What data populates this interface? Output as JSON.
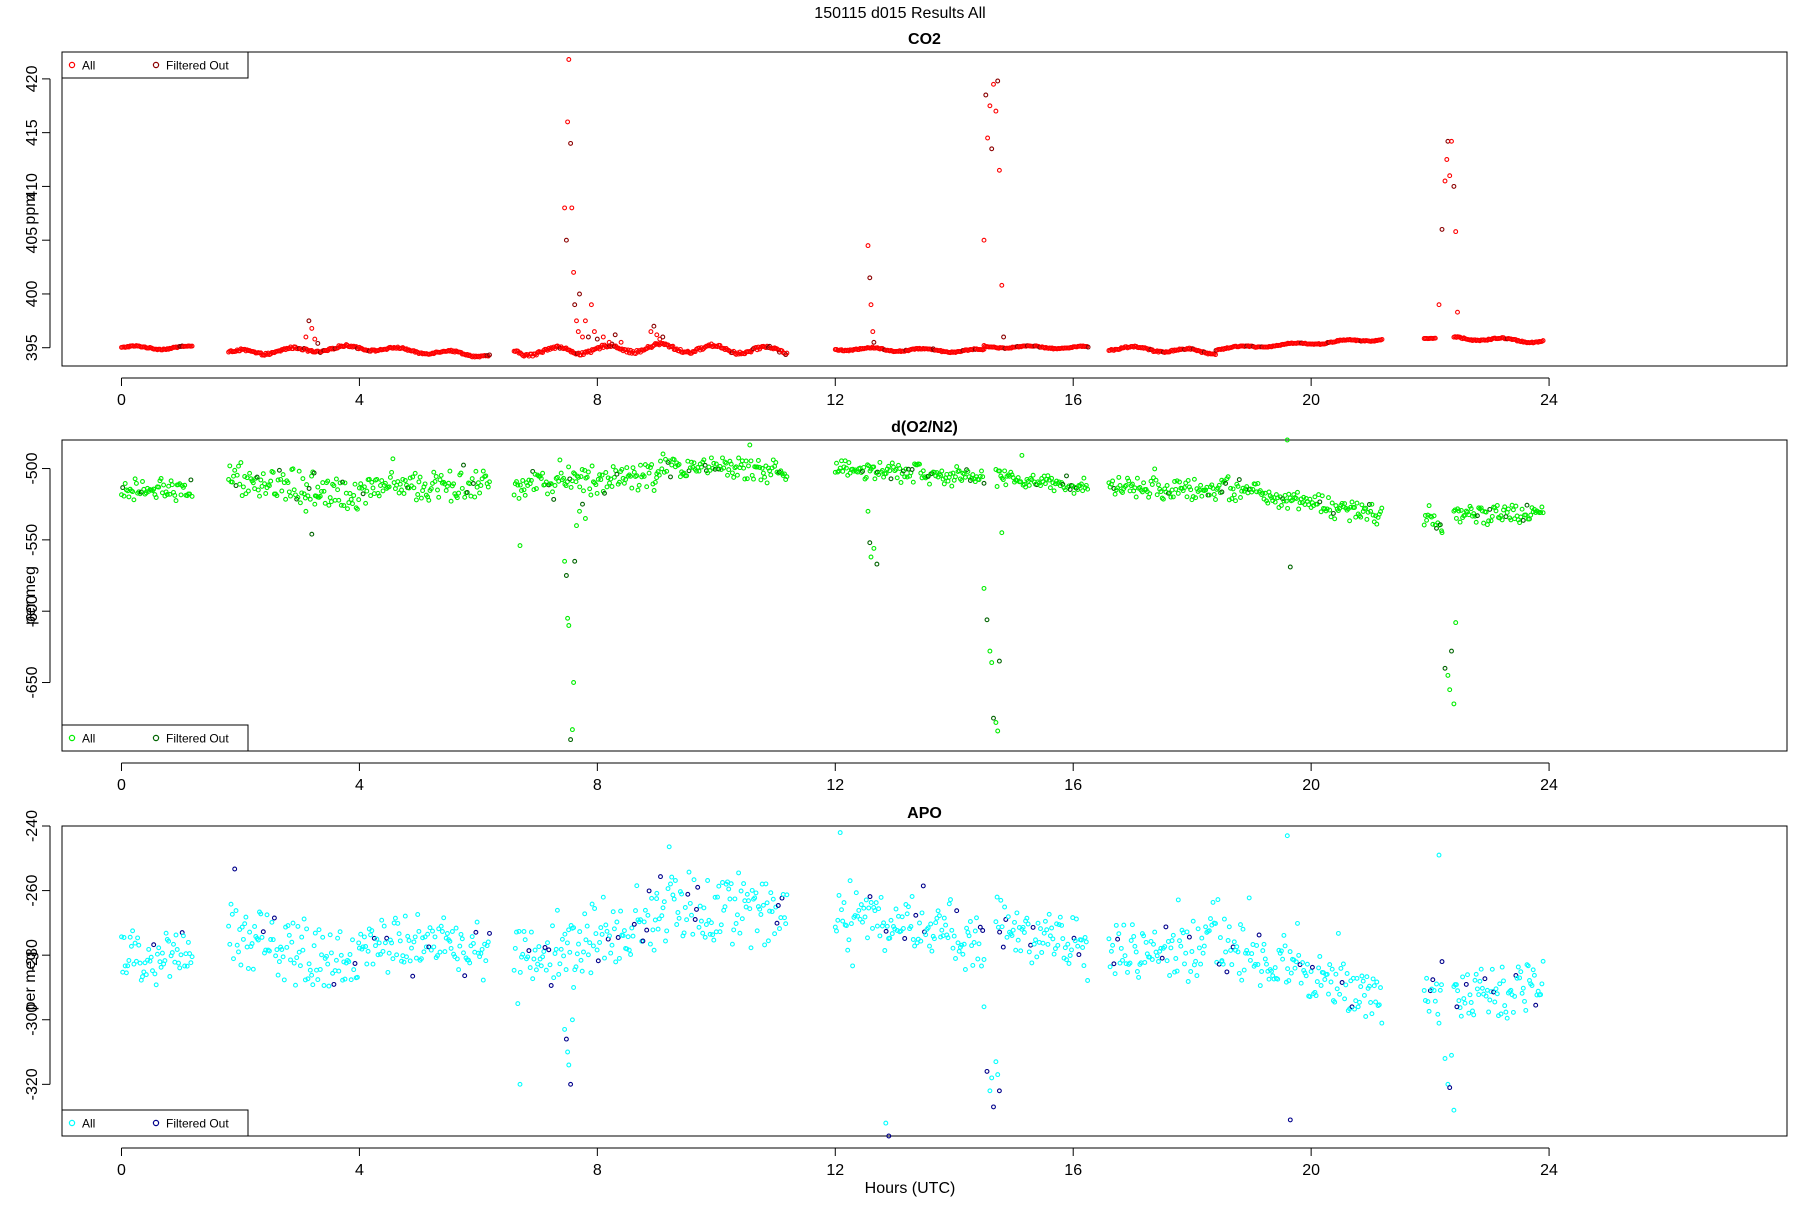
{
  "figure": {
    "title": "150115   d015   Results All",
    "xlabel": "Hours (UTC)"
  },
  "chart_data": [
    {
      "type": "scatter",
      "title": "CO2",
      "ylabel": "ppm",
      "xlabel": "",
      "xlim": [
        -1,
        28
      ],
      "ylim": [
        393.3,
        422.5
      ],
      "xticks": [
        0,
        4,
        8,
        12,
        16,
        20,
        24
      ],
      "yticks": [
        395,
        400,
        405,
        410,
        415,
        420
      ],
      "legend": {
        "position": "top-left",
        "entries": [
          "All",
          "Filtered Out"
        ]
      },
      "colors": {
        "all": "#ff0000",
        "filtered": "#8b0000"
      },
      "gaps": [
        [
          1.2,
          1.8
        ],
        [
          6.2,
          6.6
        ],
        [
          11.2,
          12.0
        ],
        [
          16.25,
          16.6
        ],
        [
          21.2,
          21.9
        ]
      ],
      "segments": [
        {
          "x0": 0.0,
          "x1": 1.2,
          "y0": 395.0,
          "y1": 395.0,
          "wave": 0.15
        },
        {
          "x0": 1.8,
          "x1": 4.0,
          "y0": 394.5,
          "y1": 395.0,
          "wave": 0.25
        },
        {
          "x0": 4.0,
          "x1": 6.2,
          "y0": 395.0,
          "y1": 394.3,
          "wave": 0.2
        },
        {
          "x0": 6.6,
          "x1": 9.0,
          "y0": 394.6,
          "y1": 395.0,
          "wave": 0.35
        },
        {
          "x0": 9.0,
          "x1": 11.2,
          "y0": 395.0,
          "y1": 394.7,
          "wave": 0.35
        },
        {
          "x0": 12.0,
          "x1": 14.5,
          "y0": 394.9,
          "y1": 394.7,
          "wave": 0.15
        },
        {
          "x0": 14.5,
          "x1": 16.25,
          "y0": 395.1,
          "y1": 395.0,
          "wave": 0.12
        },
        {
          "x0": 16.6,
          "x1": 18.4,
          "y0": 395.0,
          "y1": 394.6,
          "wave": 0.2
        },
        {
          "x0": 18.4,
          "x1": 21.2,
          "y0": 394.9,
          "y1": 395.8,
          "wave": 0.12
        },
        {
          "x0": 21.9,
          "x1": 22.1,
          "y0": 395.9,
          "y1": 395.9,
          "wave": 0.05
        },
        {
          "x0": 22.4,
          "x1": 23.9,
          "y0": 395.9,
          "y1": 395.6,
          "wave": 0.15
        }
      ],
      "spikes": [
        {
          "x": [
            3.1,
            3.15,
            3.2,
            3.25,
            3.3
          ],
          "y": [
            396.0,
            397.5,
            396.8,
            395.8,
            395.4
          ]
        },
        {
          "x": [
            7.45,
            7.48,
            7.5,
            7.52,
            7.55,
            7.57,
            7.6,
            7.62,
            7.65,
            7.68,
            7.7,
            7.75,
            7.8,
            7.85,
            7.9,
            7.95,
            8.0,
            8.1,
            8.2,
            8.3,
            8.4
          ],
          "y": [
            408.0,
            405.0,
            416.0,
            421.8,
            414.0,
            408.0,
            402.0,
            399.0,
            397.5,
            396.5,
            400.0,
            396.0,
            397.5,
            396.0,
            399.0,
            396.5,
            395.8,
            396.0,
            395.5,
            396.2,
            395.5
          ]
        },
        {
          "x": [
            8.9,
            8.95,
            9.0,
            9.05,
            9.1
          ],
          "y": [
            396.5,
            397.0,
            396.2,
            395.8,
            396.0
          ]
        },
        {
          "x": [
            12.55,
            12.58,
            12.6,
            12.63,
            12.65
          ],
          "y": [
            404.5,
            401.5,
            399.0,
            396.5,
            395.5
          ]
        },
        {
          "x": [
            14.5,
            14.53,
            14.56,
            14.6,
            14.63,
            14.66,
            14.7,
            14.73,
            14.76,
            14.8,
            14.83
          ],
          "y": [
            405.0,
            418.5,
            414.5,
            417.5,
            413.5,
            419.5,
            417.0,
            419.8,
            411.5,
            400.8,
            396.0
          ]
        },
        {
          "x": [
            22.15,
            22.2,
            22.25,
            22.28,
            22.3,
            22.33,
            22.36,
            22.4,
            22.43,
            22.46
          ],
          "y": [
            399.0,
            406.0,
            410.5,
            412.5,
            414.2,
            411.0,
            414.2,
            410.0,
            405.8,
            398.3
          ]
        }
      ]
    },
    {
      "type": "scatter",
      "title": "d(O2/N2)",
      "ylabel": "per meg",
      "xlabel": "",
      "xlim": [
        -1,
        28
      ],
      "ylim": [
        -698,
        -480
      ],
      "xticks": [
        0,
        4,
        8,
        12,
        16,
        20,
        24
      ],
      "yticks": [
        -500,
        -550,
        -600,
        -650
      ],
      "legend": {
        "position": "bottom-left",
        "entries": [
          "All",
          "Filtered Out"
        ]
      },
      "colors": {
        "all": "#00ee00",
        "filtered": "#006400"
      },
      "gaps": [
        [
          1.2,
          1.8
        ],
        [
          6.2,
          6.6
        ],
        [
          11.2,
          12.0
        ],
        [
          16.25,
          16.6
        ],
        [
          21.2,
          21.9
        ]
      ],
      "segments": [
        {
          "x0": 0.0,
          "x1": 1.2,
          "y0": -516,
          "y1": -515,
          "noise": 6
        },
        {
          "x0": 1.8,
          "x1": 4.0,
          "y0": -508,
          "y1": -520,
          "noise": 9
        },
        {
          "x0": 4.0,
          "x1": 6.2,
          "y0": -513,
          "y1": -512,
          "noise": 7
        },
        {
          "x0": 6.6,
          "x1": 9.0,
          "y0": -512,
          "y1": -505,
          "noise": 8
        },
        {
          "x0": 9.0,
          "x1": 11.2,
          "y0": -498,
          "y1": -502,
          "noise": 6
        },
        {
          "x0": 12.0,
          "x1": 14.5,
          "y0": -500,
          "y1": -506,
          "noise": 5
        },
        {
          "x0": 14.7,
          "x1": 16.25,
          "y0": -505,
          "y1": -512,
          "noise": 5
        },
        {
          "x0": 16.6,
          "x1": 18.5,
          "y0": -512,
          "y1": -515,
          "noise": 6
        },
        {
          "x0": 18.5,
          "x1": 21.2,
          "y0": -513,
          "y1": -532,
          "noise": 6
        },
        {
          "x0": 21.9,
          "x1": 22.2,
          "y0": -533,
          "y1": -540,
          "noise": 5
        },
        {
          "x0": 22.4,
          "x1": 23.9,
          "y0": -532,
          "y1": -532,
          "noise": 5
        }
      ],
      "spikes": [
        {
          "x": [
            3.1,
            3.2,
            3.25,
            3.3
          ],
          "y": [
            -530,
            -546,
            -525,
            -520
          ]
        },
        {
          "x": [
            6.7
          ],
          "y": [
            -554
          ]
        },
        {
          "x": [
            7.45,
            7.48,
            7.5,
            7.52,
            7.55,
            7.58,
            7.6,
            7.62,
            7.65,
            7.7,
            7.75,
            7.8
          ],
          "y": [
            -565,
            -575,
            -605,
            -610,
            -690,
            -683,
            -650,
            -565,
            -540,
            -530,
            -525,
            -535
          ]
        },
        {
          "x": [
            12.55,
            12.58,
            12.6,
            12.65,
            12.7
          ],
          "y": [
            -530,
            -552,
            -562,
            -556,
            -567
          ]
        },
        {
          "x": [
            14.5,
            14.55,
            14.6,
            14.63,
            14.66,
            14.7,
            14.73,
            14.76,
            14.8
          ],
          "y": [
            -584,
            -606,
            -628,
            -636,
            -675,
            -678,
            -684,
            -635,
            -545
          ]
        },
        {
          "x": [
            19.6,
            19.65
          ],
          "y": [
            -480,
            -569
          ]
        },
        {
          "x": [
            22.2,
            22.25,
            22.3,
            22.33,
            22.36,
            22.4,
            22.43
          ],
          "y": [
            -545,
            -640,
            -645,
            -655,
            -628,
            -665,
            -608
          ]
        }
      ]
    },
    {
      "type": "scatter",
      "title": "APO",
      "ylabel": "per meg",
      "xlabel": "",
      "xlim": [
        -1,
        28
      ],
      "ylim": [
        -336,
        -240
      ],
      "xticks": [
        0,
        4,
        8,
        12,
        16,
        20,
        24
      ],
      "yticks": [
        -240,
        -260,
        -280,
        -300,
        -320
      ],
      "legend": {
        "position": "bottom-left",
        "entries": [
          "All",
          "Filtered Out"
        ]
      },
      "colors": {
        "all": "#00ffff",
        "filtered": "#00008b"
      },
      "gaps": [
        [
          1.2,
          1.8
        ],
        [
          6.2,
          6.6
        ],
        [
          11.2,
          12.0
        ],
        [
          16.25,
          16.6
        ],
        [
          21.2,
          21.9
        ]
      ],
      "segments": [
        {
          "x0": 0.0,
          "x1": 1.2,
          "y0": -280,
          "y1": -280,
          "noise": 6
        },
        {
          "x0": 1.8,
          "x1": 4.0,
          "y0": -273,
          "y1": -283,
          "noise": 8
        },
        {
          "x0": 4.0,
          "x1": 6.2,
          "y0": -277,
          "y1": -277,
          "noise": 7
        },
        {
          "x0": 6.6,
          "x1": 9.0,
          "y0": -282,
          "y1": -270,
          "noise": 9
        },
        {
          "x0": 9.0,
          "x1": 11.2,
          "y0": -267,
          "y1": -265,
          "noise": 8
        },
        {
          "x0": 12.0,
          "x1": 14.5,
          "y0": -266,
          "y1": -276,
          "noise": 7
        },
        {
          "x0": 14.7,
          "x1": 16.25,
          "y0": -272,
          "y1": -277,
          "noise": 7
        },
        {
          "x0": 16.6,
          "x1": 18.5,
          "y0": -278,
          "y1": -278,
          "noise": 7
        },
        {
          "x0": 18.5,
          "x1": 21.2,
          "y0": -277,
          "y1": -293,
          "noise": 7
        },
        {
          "x0": 21.9,
          "x1": 22.2,
          "y0": -292,
          "y1": -296,
          "noise": 6
        },
        {
          "x0": 22.4,
          "x1": 23.9,
          "y0": -292,
          "y1": -290,
          "noise": 6
        }
      ],
      "spikes": [
        {
          "x": [
            6.7
          ],
          "y": [
            -320
          ]
        },
        {
          "x": [
            7.45,
            7.48,
            7.5,
            7.52,
            7.55,
            7.58,
            7.6
          ],
          "y": [
            -303,
            -306,
            -310,
            -314,
            -320,
            -300,
            -290
          ]
        },
        {
          "x": [
            12.85,
            12.9
          ],
          "y": [
            -332,
            -336
          ]
        },
        {
          "x": [
            14.5,
            14.55,
            14.6,
            14.63,
            14.66,
            14.7,
            14.73,
            14.76
          ],
          "y": [
            -296,
            -316,
            -322,
            -318,
            -327,
            -313,
            -317,
            -322
          ]
        },
        {
          "x": [
            19.6,
            19.65
          ],
          "y": [
            -243,
            -331
          ]
        },
        {
          "x": [
            22.15,
            22.2,
            22.25,
            22.3,
            22.33,
            22.36,
            22.4,
            22.45
          ],
          "y": [
            -249,
            -282,
            -312,
            -320,
            -321,
            -311,
            -328,
            -296
          ]
        }
      ]
    }
  ]
}
